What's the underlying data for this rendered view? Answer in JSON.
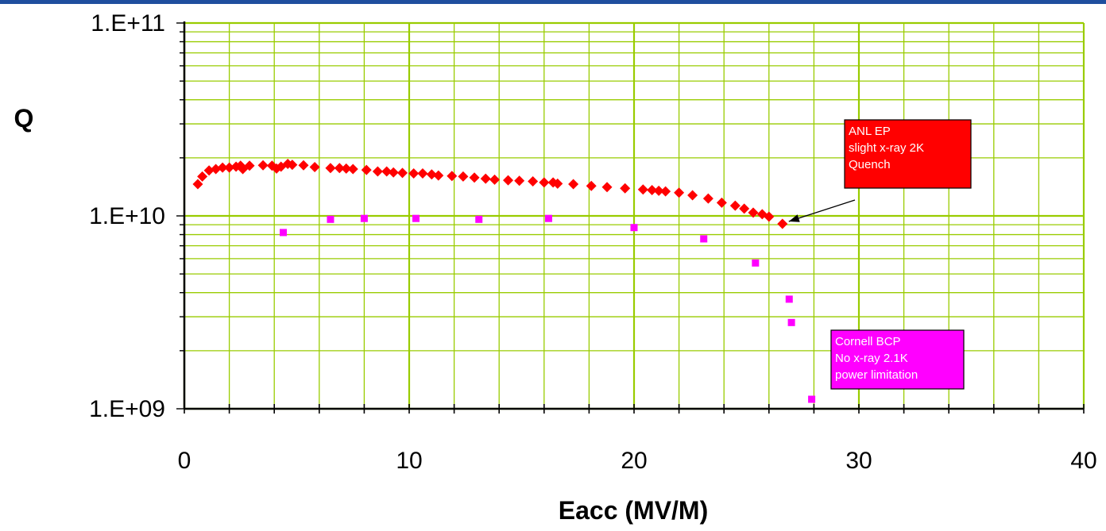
{
  "colors": {
    "top_bar": "#1f4e9e",
    "grid": "#99cc00",
    "series_anl": "#ff0000",
    "series_cornell": "#ff00ff",
    "axis": "#000000"
  },
  "chart_data": {
    "type": "scatter",
    "title": "",
    "xlabel": "Eacc (MV/M)",
    "ylabel": "Q",
    "xlim": [
      0,
      40
    ],
    "ylim": [
      1000000000,
      100000000000
    ],
    "yscale": "log",
    "grid": true,
    "x_ticks": [
      0,
      10,
      20,
      30,
      40
    ],
    "x_tick_labels": [
      "0",
      "10",
      "20",
      "30",
      "40"
    ],
    "y_ticks": [
      1000000000,
      10000000000,
      100000000000
    ],
    "y_tick_labels": [
      "1.E+09",
      "1.E+10",
      "1.E+11"
    ],
    "series": [
      {
        "marker": "diamond",
        "color": "#ff0000",
        "x": [
          0.6,
          0.8,
          1.1,
          1.4,
          1.7,
          2.0,
          2.3,
          2.5,
          2.6,
          2.9,
          3.5,
          3.9,
          4.1,
          4.3,
          4.6,
          4.8,
          5.3,
          5.8,
          6.5,
          6.9,
          7.2,
          7.5,
          8.1,
          8.6,
          9.0,
          9.3,
          9.7,
          10.2,
          10.6,
          11.0,
          11.3,
          11.9,
          12.4,
          12.9,
          13.4,
          13.8,
          14.4,
          14.9,
          15.5,
          16.0,
          16.4,
          16.6,
          17.3,
          18.1,
          18.8,
          19.6,
          20.4,
          20.8,
          21.1,
          21.4,
          22.0,
          22.6,
          23.3,
          23.9,
          24.5,
          24.9,
          25.3,
          25.7,
          26.0,
          26.6
        ],
        "y": [
          14600000000,
          16000000000,
          17200000000,
          17500000000,
          17800000000,
          17800000000,
          18000000000,
          18200000000,
          17500000000,
          18200000000,
          18300000000,
          18200000000,
          17600000000,
          18000000000,
          18600000000,
          18400000000,
          18300000000,
          17900000000,
          17700000000,
          17700000000,
          17600000000,
          17500000000,
          17300000000,
          17000000000,
          17000000000,
          16800000000,
          16700000000,
          16600000000,
          16600000000,
          16400000000,
          16200000000,
          16100000000,
          16000000000,
          15800000000,
          15600000000,
          15400000000,
          15300000000,
          15200000000,
          15100000000,
          14900000000,
          14900000000,
          14700000000,
          14600000000,
          14300000000,
          14100000000,
          13900000000,
          13700000000,
          13600000000,
          13500000000,
          13400000000,
          13200000000,
          12800000000,
          12300000000,
          11700000000,
          11300000000,
          10900000000,
          10400000000,
          10200000000,
          9900000000,
          9100000000
        ]
      },
      {
        "marker": "square",
        "color": "#ff00ff",
        "x": [
          4.4,
          6.5,
          8.0,
          10.3,
          13.1,
          16.2,
          20.0,
          23.1,
          25.4,
          26.9,
          27.0,
          27.9
        ],
        "y": [
          8200000000,
          9600000000,
          9700000000,
          9700000000,
          9600000000,
          9700000000,
          8700000000,
          7600000000,
          5700000000,
          3700000000,
          2800000000,
          1120000000
        ]
      }
    ],
    "annotations": [
      {
        "lines": [
          "ANL EP",
          "slight x-ray 2K",
          "Quench"
        ],
        "color": "#ff0000",
        "arrow_to": [
          26.6,
          9100000000
        ]
      },
      {
        "lines": [
          "Cornell BCP",
          "No x-ray 2.1K",
          "power limitation"
        ],
        "color": "#ff00ff"
      }
    ]
  }
}
